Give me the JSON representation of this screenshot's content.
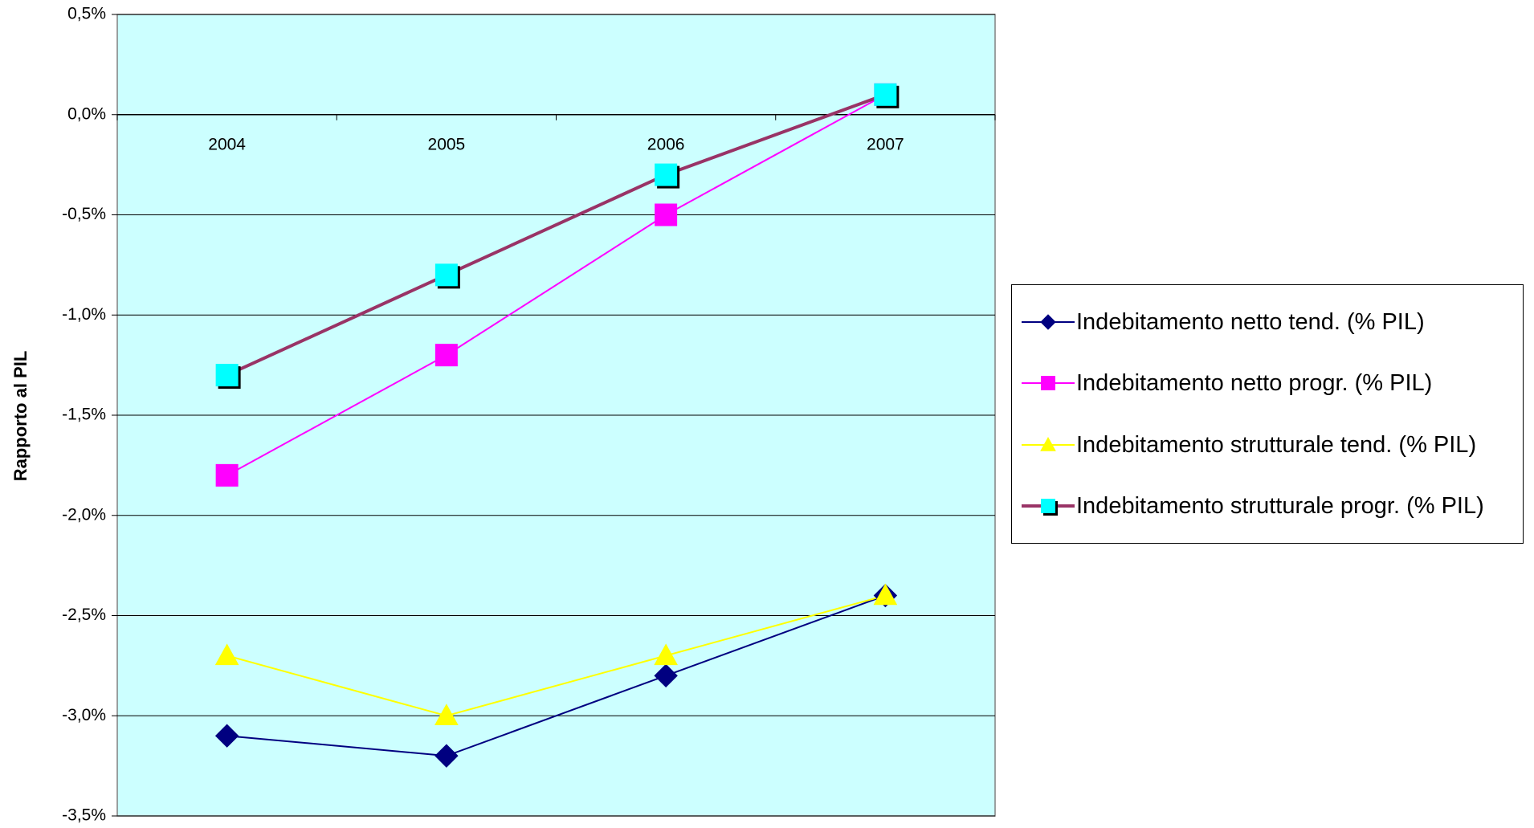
{
  "chart_data": {
    "type": "line",
    "y_label": "Rapporto al PIL",
    "categories": [
      "2004",
      "2005",
      "2006",
      "2007"
    ],
    "series": [
      {
        "name": "Indebitamento netto tend. (% PIL)",
        "color": "#000080",
        "marker": "diamond",
        "marker_color": "#000080",
        "values": [
          -3.1,
          -3.2,
          -2.8,
          -2.4
        ]
      },
      {
        "name": "Indebitamento netto progr. (% PIL)",
        "color": "#FF00FF",
        "marker": "square",
        "marker_color": "#FF00FF",
        "values": [
          -1.8,
          -1.2,
          -0.5,
          0.1
        ]
      },
      {
        "name": "Indebitamento strutturale tend. (% PIL)",
        "color": "#FFFF00",
        "marker": "triangle",
        "marker_color": "#FFFF00",
        "values": [
          -2.7,
          -3.0,
          -2.7,
          -2.4
        ]
      },
      {
        "name": "Indebitamento strutturale progr. (% PIL)",
        "color": "#993366",
        "marker": "shadow-square",
        "marker_color": "#00FFFF",
        "line_width": 4,
        "values": [
          -1.3,
          -0.8,
          -0.3,
          0.1
        ]
      }
    ],
    "ylim": [
      -3.5,
      0.5
    ],
    "yticks": [
      {
        "value": 0.5,
        "label": "0,5%"
      },
      {
        "value": 0,
        "label": "0,0%"
      },
      {
        "value": -0.5,
        "label": "-0,5%"
      },
      {
        "value": -1,
        "label": "-1,0%"
      },
      {
        "value": -1.5,
        "label": "-1,5%"
      },
      {
        "value": -2,
        "label": "-2,0%"
      },
      {
        "value": -2.5,
        "label": "-2,5%"
      },
      {
        "value": -3,
        "label": "-3,0%"
      },
      {
        "value": -3.5,
        "label": "-3,5%"
      }
    ],
    "grid": true,
    "plot_background": "#CCFFFF",
    "legend_position": "right"
  }
}
